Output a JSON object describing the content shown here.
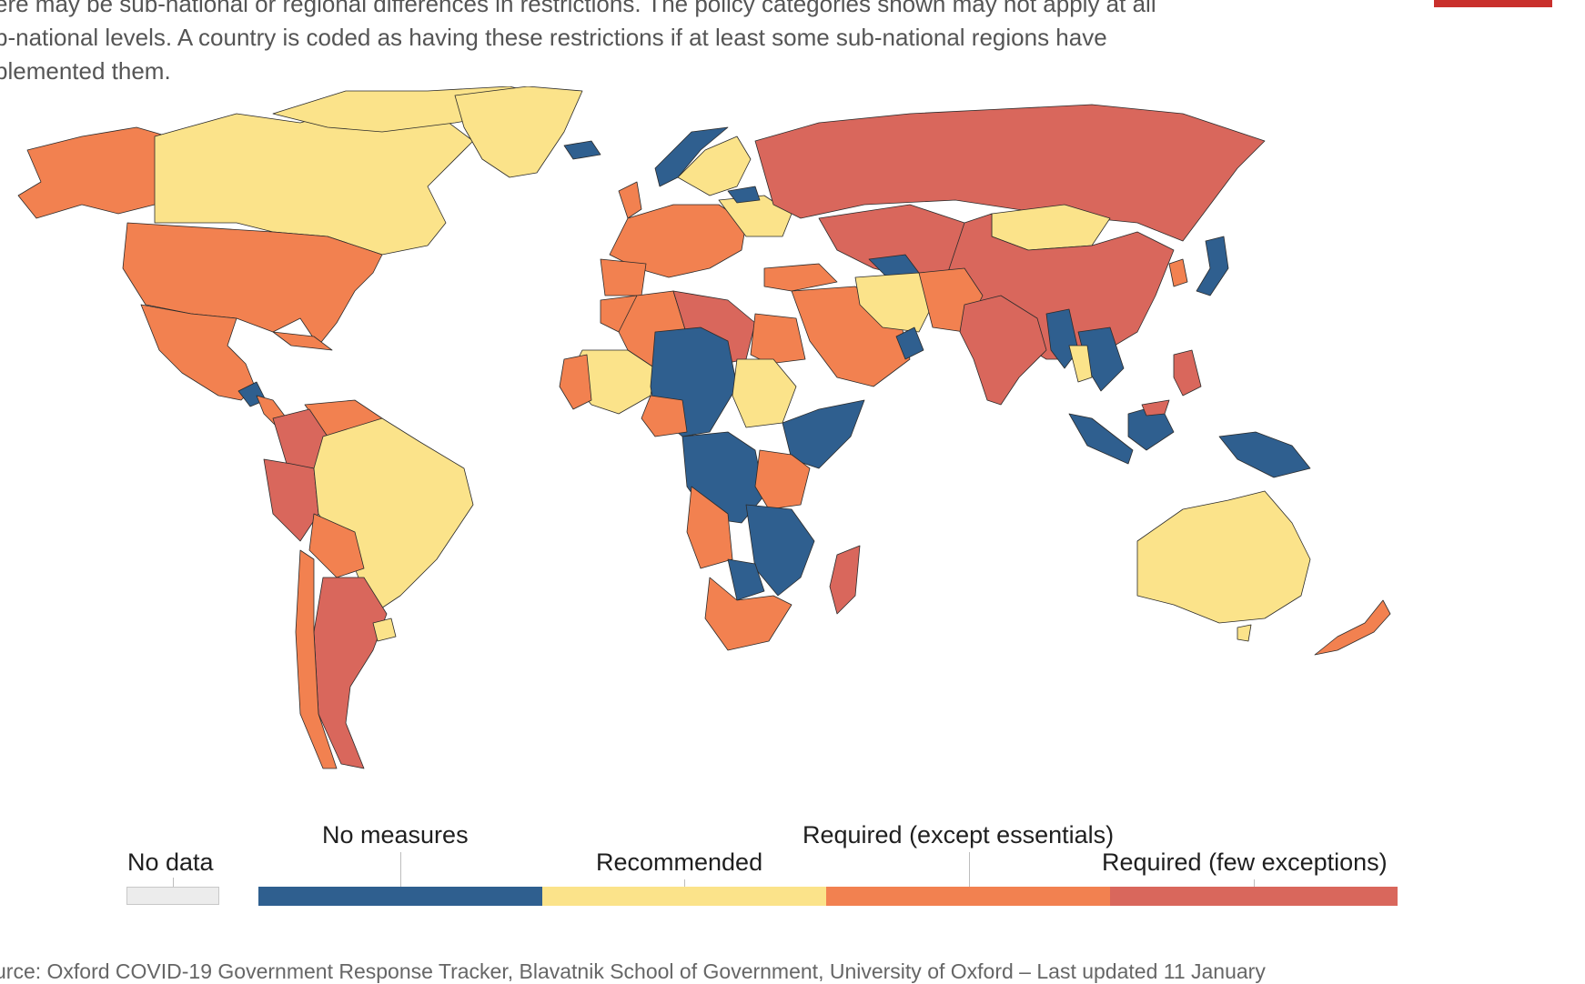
{
  "description": {
    "lines": [
      "ere may be sub-national or regional differences in restrictions. The policy categories shown may not apply at all",
      "b-national levels. A country is coded as having these restrictions if at least some sub-national regions have",
      "plemented them."
    ]
  },
  "colors": {
    "no_data": "#ececec",
    "no_measures": "#2f5f8f",
    "recommended": "#fbe38a",
    "required_except_essentials": "#f28150",
    "required_few_exceptions": "#d9675c"
  },
  "legend": {
    "no_data": "No data",
    "categories": [
      {
        "label": "No measures",
        "color": "#2f5f8f"
      },
      {
        "label": "Recommended",
        "color": "#fbe38a"
      },
      {
        "label": "Required (except essentials)",
        "color": "#f28150"
      },
      {
        "label": "Required (few exceptions)",
        "color": "#d9675c"
      }
    ]
  },
  "source": "urce: Oxford COVID-19 Government Response Tracker, Blavatnik School of Government, University of Oxford – Last updated 11 January"
}
